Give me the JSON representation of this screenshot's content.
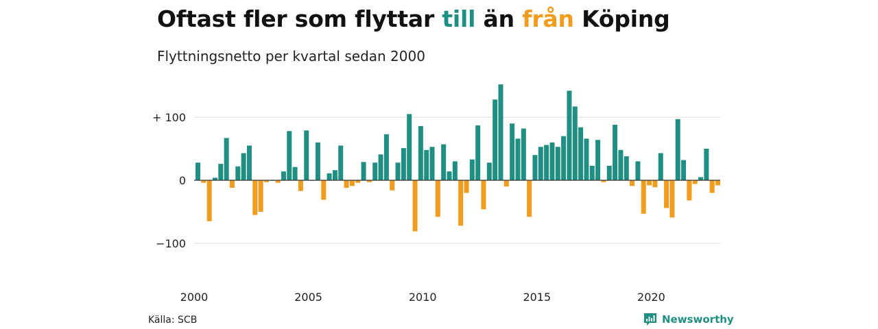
{
  "title": {
    "pre": "Oftast fler som flyttar ",
    "till": "till",
    "mid": " än ",
    "fran": "från",
    "post": " Köping"
  },
  "colors": {
    "positive": "#1e8f82",
    "negative": "#f19c1c",
    "grid": "#dcdcdc",
    "brand": "#1e8f82"
  },
  "source": "Källa: SCB",
  "brand": {
    "name": "Newsworthy",
    "icon": "newsworthy-logo-icon"
  },
  "chart_data": {
    "type": "bar",
    "title": "Oftast fler som flyttar till än från Köping",
    "subtitle": "Flyttningsnetto per kvartal sedan 2000",
    "xlabel": "",
    "ylabel": "",
    "ylim": [
      -130,
      160
    ],
    "yticks": [
      100,
      0,
      -100
    ],
    "ytick_labels": [
      "+ 100",
      "0",
      "−100"
    ],
    "xticks": [
      "2000",
      "2005",
      "2010",
      "2015",
      "2020"
    ],
    "grid": true,
    "x_start": "2000 Q1",
    "frequency": "quarterly",
    "values": [
      28,
      -4,
      -65,
      4,
      26,
      67,
      -12,
      22,
      43,
      55,
      -55,
      -50,
      -3,
      0,
      -4,
      14,
      78,
      21,
      -17,
      79,
      0,
      60,
      -31,
      11,
      16,
      55,
      -12,
      -9,
      -4,
      29,
      -3,
      28,
      41,
      73,
      -16,
      28,
      51,
      105,
      -81,
      86,
      48,
      53,
      -58,
      57,
      14,
      30,
      -72,
      -20,
      33,
      87,
      -46,
      28,
      128,
      152,
      -10,
      90,
      66,
      82,
      -58,
      40,
      53,
      56,
      60,
      53,
      70,
      142,
      117,
      84,
      66,
      23,
      64,
      -3,
      23,
      88,
      48,
      38,
      -9,
      30,
      -53,
      -8,
      -11,
      43,
      -44,
      -59,
      97,
      32,
      -32,
      -6,
      5,
      50,
      -20,
      -8
    ]
  }
}
